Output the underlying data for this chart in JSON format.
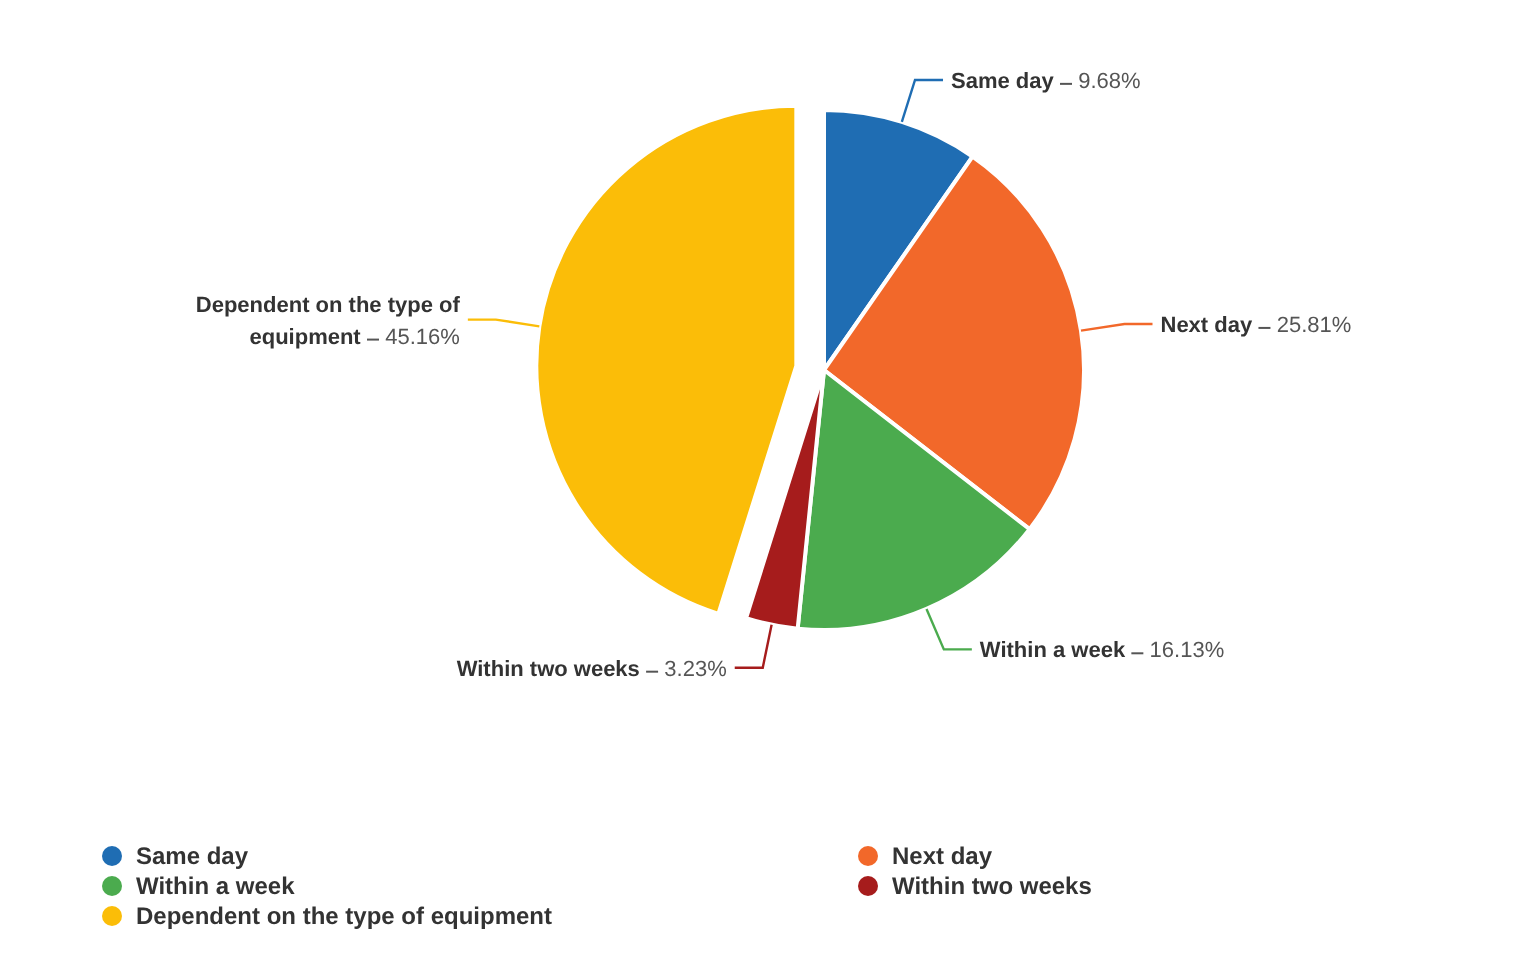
{
  "chart_data": {
    "type": "pie",
    "categories": [
      "Same day",
      "Next day",
      "Within a week",
      "Within two weeks",
      "Dependent on the type of equipment"
    ],
    "values": [
      9.68,
      25.81,
      16.13,
      3.23,
      45.16
    ],
    "colors": [
      "#1f6db3",
      "#f2682a",
      "#4bab4e",
      "#a61c1c",
      "#fbbd08"
    ],
    "value_labels": [
      "9.68%",
      "25.81%",
      "16.13%",
      "3.23%",
      "45.16%"
    ],
    "legend": "bottom"
  }
}
